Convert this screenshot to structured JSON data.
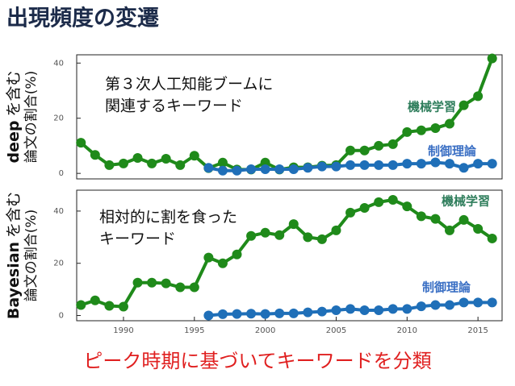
{
  "title": "出現頻度の変遷",
  "caption": "ピーク時期に基づいてキーワードを分類",
  "chart_data": [
    {
      "type": "line",
      "ylabel_keyword": "deep",
      "ylabel": [
        "を含む",
        "論文の割合(%)"
      ],
      "annotation": [
        "第３次人工知能ブームに",
        "関連するキーワード"
      ],
      "xlim": [
        1986.7,
        2016.7
      ],
      "ylim": [
        -2,
        43
      ],
      "yticks": [
        0,
        20,
        40
      ],
      "series": [
        {
          "name": "機械学習",
          "color": "#1f8a1a",
          "label_color": "#2e7d5b",
          "x": [
            1987,
            1988,
            1989,
            1990,
            1991,
            1992,
            1993,
            1994,
            1995,
            1996,
            1997,
            1998,
            1999,
            2000,
            2001,
            2002,
            2003,
            2004,
            2005,
            2006,
            2007,
            2008,
            2009,
            2010,
            2011,
            2012,
            2013,
            2014,
            2015,
            2016
          ],
          "values": [
            11.1,
            6.7,
            3,
            3.6,
            5.6,
            3.6,
            5.3,
            3,
            6.4,
            1.9,
            3.9,
            1.4,
            1.4,
            3.9,
            1.4,
            2.2,
            2.2,
            2.8,
            3,
            8.3,
            8.3,
            10,
            10.6,
            15,
            15.6,
            16.4,
            18,
            24.7,
            28,
            41.7
          ]
        },
        {
          "name": "制御理論",
          "color": "#1f6fb8",
          "label_color": "#3a6fc4",
          "x": [
            1996,
            1997,
            1998,
            1999,
            2000,
            2001,
            2002,
            2003,
            2004,
            2005,
            2006,
            2007,
            2008,
            2009,
            2010,
            2011,
            2012,
            2013,
            2014,
            2015,
            2016
          ],
          "values": [
            2,
            1,
            1,
            1.5,
            1.5,
            1.5,
            1.5,
            2,
            2.5,
            2.5,
            3,
            3,
            3,
            3,
            3.5,
            3.5,
            4,
            3.5,
            2,
            3.5,
            3.5
          ]
        }
      ]
    },
    {
      "type": "line",
      "ylabel_keyword": "Bayesian",
      "ylabel": [
        "を含む",
        "論文の割合(%)"
      ],
      "annotation": [
        "相対的に割を食った",
        "キーワード"
      ],
      "xlim": [
        1986.7,
        2016.7
      ],
      "xticks": [
        1990,
        1995,
        2000,
        2005,
        2010,
        2015
      ],
      "ylim": [
        -2,
        48
      ],
      "yticks": [
        0,
        20,
        40
      ],
      "series": [
        {
          "name": "機械学習",
          "color": "#1f8a1a",
          "label_color": "#2e7d5b",
          "x": [
            1987,
            1988,
            1989,
            1990,
            1991,
            1992,
            1993,
            1994,
            1995,
            1996,
            1997,
            1998,
            1999,
            2000,
            2001,
            2002,
            2003,
            2004,
            2005,
            2006,
            2007,
            2008,
            2009,
            2010,
            2011,
            2012,
            2013,
            2014,
            2015,
            2016
          ],
          "values": [
            4,
            5.8,
            3.7,
            3.4,
            12.6,
            12.6,
            12.3,
            10.8,
            10.8,
            22.2,
            20,
            23.4,
            30.5,
            31.7,
            30.8,
            35,
            30,
            29.2,
            32.6,
            39.4,
            41.2,
            43.4,
            44.3,
            41.8,
            38,
            37,
            32.6,
            36.6,
            33.2,
            29.5
          ]
        },
        {
          "name": "制御理論",
          "color": "#1f6fb8",
          "label_color": "#3a6fc4",
          "x": [
            1996,
            1997,
            1998,
            1999,
            2000,
            2001,
            2002,
            2003,
            2004,
            2005,
            2006,
            2007,
            2008,
            2009,
            2010,
            2011,
            2012,
            2013,
            2014,
            2015,
            2016
          ],
          "values": [
            0,
            0.5,
            0.6,
            0.7,
            0.6,
            0.8,
            0.8,
            1.2,
            1.5,
            2,
            2.5,
            2,
            2,
            2.5,
            2.5,
            3.5,
            4,
            4,
            5,
            5,
            5
          ]
        }
      ]
    }
  ]
}
